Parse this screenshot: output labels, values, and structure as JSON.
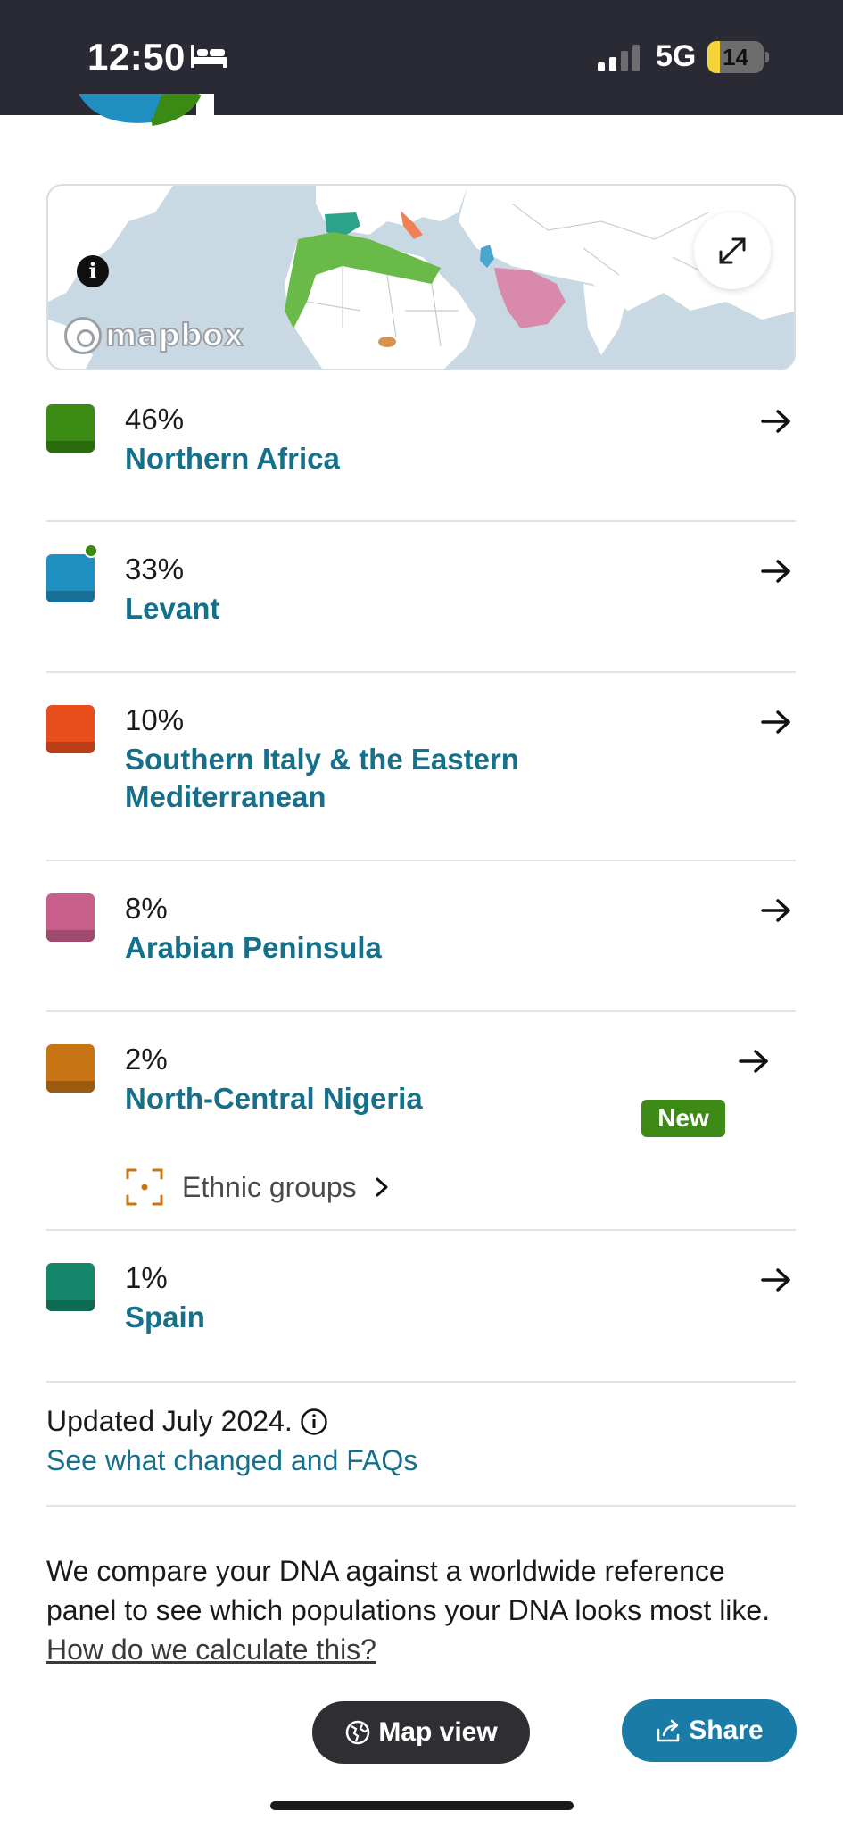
{
  "status_bar": {
    "time": "12:50",
    "network": "5G",
    "battery": "14",
    "icons": [
      "sleep-bed-icon",
      "cellular-signal-icon",
      "battery-icon"
    ]
  },
  "map": {
    "attribution": "mapbox",
    "info_icon": "info-icon",
    "expand_icon": "expand-arrows-icon"
  },
  "regions": [
    {
      "percent": "46%",
      "name": "Northern Africa",
      "color": "#3a8a14",
      "color_dark": "#2b6b0e",
      "is_new": false,
      "has_dot": false
    },
    {
      "percent": "33%",
      "name": "Levant",
      "color": "#1f8fc1",
      "color_dark": "#176f98",
      "is_new": false,
      "has_dot": true
    },
    {
      "percent": "10%",
      "name": "Southern Italy & the Eastern Mediterranean",
      "color": "#e84d1c",
      "color_dark": "#b93d16",
      "is_new": false,
      "has_dot": false
    },
    {
      "percent": "8%",
      "name": "Arabian Peninsula",
      "color": "#c85e8a",
      "color_dark": "#a04a6e",
      "is_new": false,
      "has_dot": false
    },
    {
      "percent": "2%",
      "name": "North-Central Nigeria",
      "color": "#c67414",
      "color_dark": "#9b5a0f",
      "is_new": true,
      "new_label": "New",
      "sublink": "Ethnic groups",
      "has_dot": false
    },
    {
      "percent": "1%",
      "name": "Spain",
      "color": "#14876a",
      "color_dark": "#0f6a53",
      "is_new": false,
      "has_dot": false
    }
  ],
  "footer": {
    "updated": "Updated July 2024.",
    "faq_link": "See what changed and FAQs",
    "description": "We compare your DNA against a worldwide reference panel to see which populations your DNA looks most like.",
    "calc_link": "How do we calculate this?"
  },
  "actions": {
    "map_view": "Map view",
    "share": "Share"
  }
}
